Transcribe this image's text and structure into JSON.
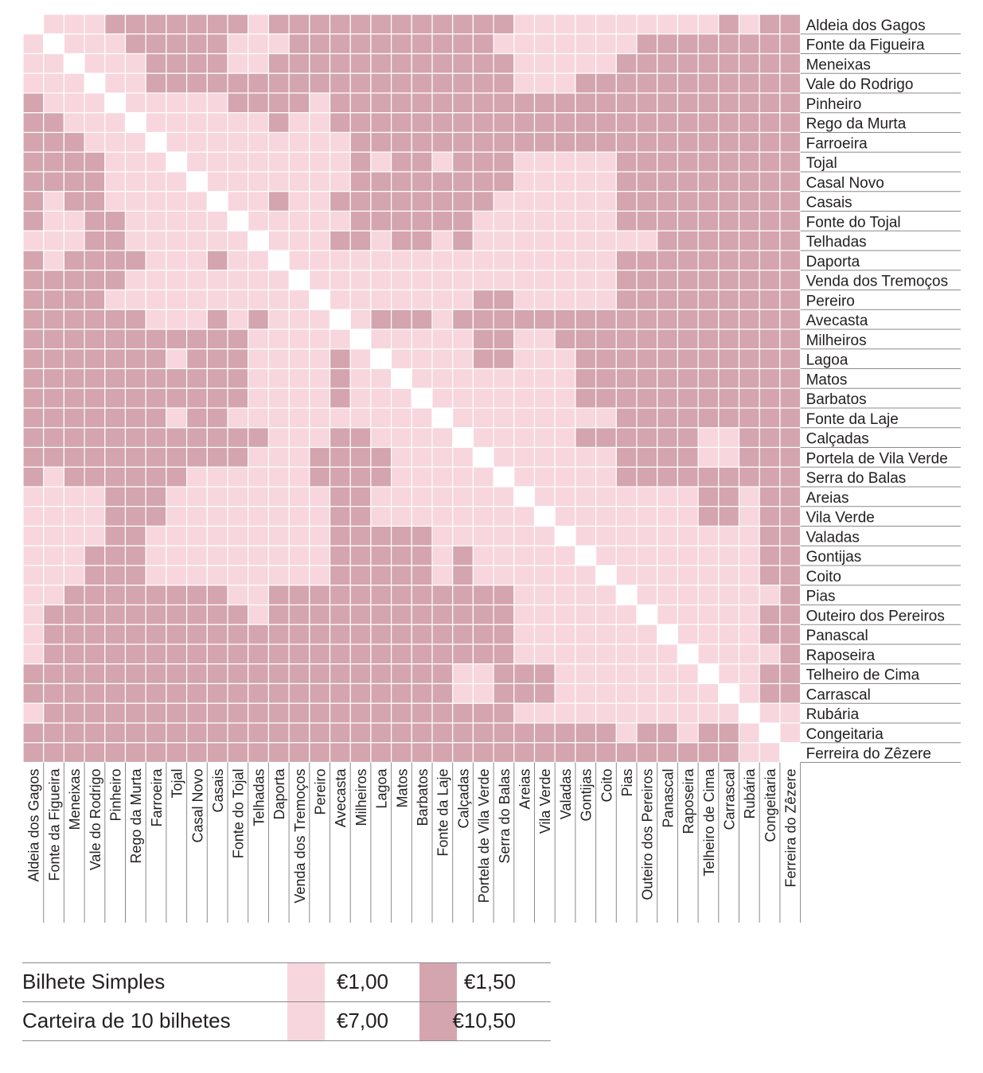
{
  "chart_data": {
    "type": "heatmap",
    "stops": [
      "Aldeia dos Gagos",
      "Fonte da Figueira",
      "Meneixas",
      "Vale do Rodrigo",
      "Pinheiro",
      "Rego da Murta",
      "Farroeira",
      "Tojal",
      "Casal Novo",
      "Casais",
      "Fonte do Tojal",
      "Telhadas",
      "Daporta",
      "Venda dos Tremoços",
      "Pereiro",
      "Avecasta",
      "Milheiros",
      "Lagoa",
      "Matos",
      "Barbatos",
      "Fonte da Laje",
      "Calçadas",
      "Portela de Vila Verde",
      "Serra do Balas",
      "Areias",
      "Vila Verde",
      "Valadas",
      "Gontijas",
      "Coito",
      "Pias",
      "Outeiro dos Pereiros",
      "Panascal",
      "Raposeira",
      "Telheiro de Cima",
      "Carrascal",
      "Rubária",
      "Congeitaria",
      "Ferreira do Zêzere"
    ],
    "value_legend": {
      "1": "€1,00",
      "2": "€1,50"
    },
    "matrix": [
      [
        0,
        1,
        1,
        1,
        2,
        2,
        2,
        2,
        2,
        2,
        2,
        1,
        2,
        2,
        2,
        2,
        2,
        2,
        2,
        2,
        2,
        2,
        2,
        2,
        1,
        1,
        1,
        1,
        1,
        1,
        1,
        1,
        1,
        1,
        2,
        1,
        2,
        2
      ],
      [
        1,
        0,
        1,
        1,
        1,
        2,
        2,
        2,
        2,
        2,
        1,
        1,
        1,
        2,
        2,
        2,
        2,
        2,
        2,
        2,
        2,
        2,
        2,
        1,
        1,
        1,
        1,
        1,
        1,
        1,
        2,
        2,
        2,
        2,
        2,
        2,
        2,
        2
      ],
      [
        1,
        1,
        0,
        1,
        1,
        1,
        2,
        2,
        2,
        2,
        1,
        1,
        2,
        2,
        2,
        2,
        2,
        2,
        2,
        2,
        2,
        2,
        2,
        2,
        1,
        1,
        1,
        1,
        1,
        2,
        2,
        2,
        2,
        2,
        2,
        2,
        2,
        2
      ],
      [
        1,
        1,
        1,
        0,
        1,
        1,
        2,
        2,
        2,
        2,
        2,
        2,
        2,
        2,
        2,
        2,
        2,
        2,
        2,
        2,
        2,
        2,
        2,
        2,
        1,
        1,
        1,
        2,
        2,
        2,
        2,
        2,
        2,
        2,
        2,
        2,
        2,
        2
      ],
      [
        2,
        1,
        1,
        1,
        0,
        1,
        1,
        1,
        1,
        1,
        2,
        2,
        2,
        2,
        1,
        2,
        2,
        2,
        2,
        2,
        2,
        2,
        2,
        2,
        2,
        2,
        2,
        2,
        2,
        2,
        2,
        2,
        2,
        2,
        2,
        2,
        2,
        2
      ],
      [
        2,
        2,
        1,
        1,
        1,
        0,
        1,
        1,
        1,
        1,
        1,
        1,
        2,
        1,
        1,
        2,
        2,
        2,
        2,
        2,
        2,
        2,
        2,
        2,
        2,
        2,
        2,
        2,
        2,
        2,
        2,
        2,
        2,
        2,
        2,
        2,
        2,
        2
      ],
      [
        2,
        2,
        2,
        1,
        1,
        1,
        0,
        1,
        1,
        1,
        1,
        1,
        1,
        1,
        1,
        1,
        2,
        2,
        2,
        2,
        2,
        2,
        2,
        2,
        2,
        2,
        2,
        2,
        2,
        2,
        2,
        2,
        2,
        2,
        2,
        2,
        2,
        2
      ],
      [
        2,
        2,
        2,
        2,
        1,
        1,
        1,
        0,
        1,
        1,
        1,
        1,
        1,
        1,
        1,
        1,
        2,
        1,
        2,
        2,
        1,
        2,
        2,
        2,
        1,
        1,
        1,
        1,
        1,
        2,
        2,
        2,
        2,
        2,
        2,
        2,
        2,
        2
      ],
      [
        2,
        2,
        2,
        2,
        1,
        1,
        1,
        1,
        0,
        1,
        1,
        1,
        1,
        1,
        1,
        1,
        2,
        2,
        2,
        2,
        2,
        2,
        2,
        2,
        1,
        1,
        1,
        1,
        1,
        2,
        2,
        2,
        2,
        2,
        2,
        2,
        2,
        2
      ],
      [
        2,
        1,
        2,
        2,
        1,
        1,
        1,
        1,
        1,
        0,
        1,
        1,
        2,
        1,
        1,
        2,
        2,
        2,
        2,
        2,
        2,
        2,
        2,
        1,
        1,
        1,
        1,
        1,
        1,
        2,
        2,
        2,
        2,
        2,
        2,
        2,
        2,
        2
      ],
      [
        2,
        1,
        1,
        2,
        2,
        1,
        1,
        1,
        1,
        1,
        0,
        1,
        1,
        1,
        1,
        1,
        2,
        2,
        2,
        2,
        2,
        2,
        1,
        1,
        1,
        1,
        1,
        1,
        1,
        2,
        2,
        2,
        2,
        2,
        2,
        2,
        2,
        2
      ],
      [
        1,
        1,
        1,
        2,
        2,
        1,
        1,
        1,
        1,
        1,
        1,
        0,
        1,
        1,
        1,
        2,
        2,
        1,
        2,
        2,
        1,
        2,
        1,
        1,
        1,
        1,
        1,
        1,
        1,
        1,
        1,
        2,
        2,
        2,
        2,
        2,
        2,
        2
      ],
      [
        2,
        1,
        2,
        2,
        2,
        2,
        1,
        1,
        1,
        2,
        1,
        1,
        0,
        1,
        1,
        1,
        1,
        1,
        1,
        1,
        1,
        1,
        1,
        1,
        1,
        1,
        1,
        1,
        1,
        2,
        2,
        2,
        2,
        2,
        2,
        2,
        2,
        2
      ],
      [
        2,
        2,
        2,
        2,
        2,
        1,
        1,
        1,
        1,
        1,
        1,
        1,
        1,
        0,
        1,
        1,
        1,
        1,
        1,
        1,
        1,
        1,
        1,
        1,
        1,
        1,
        1,
        1,
        1,
        2,
        2,
        2,
        2,
        2,
        2,
        2,
        2,
        2
      ],
      [
        2,
        2,
        2,
        2,
        1,
        1,
        1,
        1,
        1,
        1,
        1,
        1,
        1,
        1,
        0,
        1,
        1,
        1,
        1,
        1,
        1,
        1,
        2,
        2,
        1,
        1,
        1,
        1,
        1,
        2,
        2,
        2,
        2,
        2,
        2,
        2,
        2,
        2
      ],
      [
        2,
        2,
        2,
        2,
        2,
        2,
        1,
        1,
        1,
        2,
        1,
        2,
        1,
        1,
        1,
        0,
        1,
        2,
        2,
        2,
        1,
        2,
        2,
        2,
        2,
        2,
        2,
        2,
        2,
        2,
        2,
        2,
        2,
        2,
        2,
        2,
        2,
        2
      ],
      [
        2,
        2,
        2,
        2,
        2,
        2,
        2,
        2,
        2,
        2,
        2,
        1,
        1,
        1,
        1,
        1,
        0,
        1,
        1,
        1,
        1,
        1,
        2,
        2,
        1,
        1,
        2,
        2,
        2,
        2,
        2,
        2,
        2,
        2,
        2,
        2,
        2,
        2
      ],
      [
        2,
        2,
        2,
        2,
        2,
        2,
        2,
        1,
        2,
        2,
        2,
        1,
        1,
        1,
        1,
        2,
        1,
        0,
        1,
        1,
        1,
        1,
        2,
        2,
        1,
        1,
        1,
        2,
        2,
        2,
        2,
        2,
        2,
        2,
        2,
        2,
        2,
        2
      ],
      [
        2,
        2,
        2,
        2,
        2,
        2,
        2,
        2,
        2,
        2,
        2,
        1,
        1,
        1,
        1,
        2,
        1,
        1,
        0,
        1,
        1,
        1,
        1,
        1,
        1,
        1,
        1,
        2,
        2,
        2,
        2,
        2,
        2,
        2,
        2,
        2,
        2,
        2
      ],
      [
        2,
        2,
        2,
        2,
        2,
        2,
        2,
        2,
        2,
        2,
        2,
        1,
        1,
        1,
        1,
        2,
        1,
        1,
        1,
        0,
        1,
        1,
        1,
        1,
        1,
        1,
        1,
        2,
        2,
        2,
        2,
        2,
        2,
        2,
        2,
        2,
        2,
        2
      ],
      [
        2,
        2,
        2,
        2,
        2,
        2,
        2,
        1,
        2,
        2,
        1,
        1,
        1,
        1,
        1,
        1,
        1,
        1,
        1,
        1,
        0,
        1,
        1,
        1,
        1,
        1,
        1,
        1,
        1,
        2,
        2,
        2,
        2,
        2,
        2,
        2,
        2,
        2
      ],
      [
        2,
        2,
        2,
        2,
        2,
        2,
        2,
        2,
        2,
        2,
        2,
        2,
        1,
        1,
        1,
        2,
        2,
        1,
        1,
        1,
        1,
        0,
        1,
        1,
        1,
        1,
        1,
        2,
        2,
        2,
        2,
        2,
        2,
        1,
        1,
        2,
        2,
        2
      ],
      [
        2,
        2,
        2,
        2,
        2,
        2,
        2,
        2,
        2,
        2,
        2,
        1,
        1,
        1,
        2,
        2,
        2,
        2,
        1,
        1,
        1,
        1,
        0,
        1,
        1,
        1,
        1,
        1,
        1,
        2,
        2,
        2,
        2,
        1,
        1,
        2,
        2,
        2
      ],
      [
        2,
        1,
        2,
        2,
        2,
        2,
        2,
        2,
        1,
        1,
        1,
        1,
        1,
        1,
        2,
        2,
        2,
        2,
        1,
        1,
        1,
        1,
        1,
        0,
        1,
        1,
        1,
        1,
        1,
        2,
        2,
        2,
        2,
        2,
        2,
        2,
        2,
        2
      ],
      [
        1,
        1,
        1,
        1,
        2,
        2,
        2,
        1,
        1,
        1,
        1,
        1,
        1,
        1,
        1,
        2,
        2,
        1,
        1,
        1,
        1,
        1,
        1,
        1,
        0,
        1,
        1,
        1,
        1,
        1,
        1,
        1,
        1,
        2,
        2,
        1,
        2,
        2
      ],
      [
        1,
        1,
        1,
        1,
        2,
        2,
        2,
        1,
        1,
        1,
        1,
        1,
        1,
        1,
        1,
        2,
        2,
        1,
        1,
        1,
        1,
        1,
        1,
        1,
        1,
        0,
        1,
        1,
        1,
        1,
        1,
        1,
        1,
        2,
        2,
        1,
        2,
        2
      ],
      [
        1,
        1,
        1,
        1,
        2,
        2,
        1,
        1,
        1,
        1,
        1,
        1,
        1,
        1,
        1,
        2,
        2,
        2,
        2,
        2,
        1,
        1,
        1,
        1,
        1,
        1,
        0,
        1,
        1,
        1,
        1,
        1,
        1,
        1,
        1,
        1,
        2,
        2
      ],
      [
        1,
        1,
        1,
        2,
        2,
        2,
        1,
        1,
        1,
        1,
        1,
        1,
        1,
        1,
        1,
        2,
        2,
        2,
        2,
        2,
        1,
        2,
        1,
        1,
        1,
        1,
        1,
        0,
        1,
        1,
        1,
        1,
        1,
        1,
        1,
        1,
        2,
        2
      ],
      [
        1,
        1,
        1,
        2,
        2,
        2,
        1,
        1,
        1,
        1,
        1,
        1,
        1,
        1,
        1,
        2,
        2,
        2,
        2,
        2,
        1,
        2,
        1,
        1,
        1,
        1,
        1,
        1,
        0,
        1,
        1,
        1,
        1,
        1,
        1,
        1,
        2,
        2
      ],
      [
        1,
        1,
        2,
        2,
        2,
        2,
        2,
        2,
        2,
        2,
        1,
        1,
        2,
        2,
        2,
        2,
        2,
        2,
        2,
        2,
        2,
        2,
        2,
        2,
        1,
        1,
        1,
        1,
        1,
        0,
        1,
        1,
        1,
        1,
        1,
        1,
        1,
        2
      ],
      [
        1,
        2,
        2,
        2,
        2,
        2,
        2,
        2,
        2,
        2,
        2,
        1,
        2,
        2,
        2,
        2,
        2,
        2,
        2,
        2,
        2,
        2,
        2,
        2,
        1,
        1,
        1,
        1,
        1,
        1,
        0,
        1,
        1,
        1,
        1,
        1,
        2,
        2
      ],
      [
        1,
        2,
        2,
        2,
        2,
        2,
        2,
        2,
        2,
        2,
        2,
        2,
        2,
        2,
        2,
        2,
        2,
        2,
        2,
        2,
        2,
        2,
        2,
        2,
        1,
        1,
        1,
        1,
        1,
        1,
        1,
        0,
        1,
        1,
        1,
        1,
        2,
        2
      ],
      [
        1,
        2,
        2,
        2,
        2,
        2,
        2,
        2,
        2,
        2,
        2,
        2,
        2,
        2,
        2,
        2,
        2,
        2,
        2,
        2,
        2,
        2,
        2,
        2,
        1,
        1,
        1,
        1,
        1,
        1,
        1,
        1,
        0,
        1,
        1,
        1,
        1,
        2
      ],
      [
        2,
        2,
        2,
        2,
        2,
        2,
        2,
        2,
        2,
        2,
        2,
        2,
        2,
        2,
        2,
        2,
        2,
        2,
        2,
        2,
        2,
        1,
        1,
        2,
        2,
        2,
        1,
        1,
        1,
        1,
        1,
        1,
        1,
        0,
        1,
        1,
        2,
        2
      ],
      [
        2,
        2,
        2,
        2,
        2,
        2,
        2,
        2,
        2,
        2,
        2,
        2,
        2,
        2,
        2,
        2,
        2,
        2,
        2,
        2,
        2,
        1,
        1,
        2,
        2,
        2,
        1,
        1,
        1,
        1,
        1,
        1,
        1,
        1,
        0,
        1,
        2,
        2
      ],
      [
        1,
        2,
        2,
        2,
        2,
        2,
        2,
        2,
        2,
        2,
        2,
        2,
        2,
        2,
        2,
        2,
        2,
        2,
        2,
        2,
        2,
        2,
        2,
        2,
        1,
        1,
        1,
        1,
        1,
        1,
        1,
        1,
        1,
        1,
        1,
        0,
        1,
        1
      ],
      [
        2,
        2,
        2,
        2,
        2,
        2,
        2,
        2,
        2,
        2,
        2,
        2,
        2,
        2,
        2,
        2,
        2,
        2,
        2,
        2,
        2,
        2,
        2,
        2,
        2,
        2,
        2,
        2,
        2,
        1,
        2,
        2,
        1,
        2,
        2,
        1,
        0,
        1
      ],
      [
        2,
        2,
        2,
        2,
        2,
        2,
        2,
        2,
        2,
        2,
        2,
        2,
        2,
        2,
        2,
        2,
        2,
        2,
        2,
        2,
        2,
        2,
        2,
        2,
        2,
        2,
        2,
        2,
        2,
        2,
        2,
        2,
        2,
        2,
        2,
        1,
        1,
        0
      ]
    ]
  },
  "colors": {
    "light": "#f8d6de",
    "dark": "#d4a5ae",
    "diagonal": "#ffffff",
    "grid": "#ffffff",
    "rule": "#8a8a8a"
  },
  "legend": {
    "rows": [
      {
        "label": "Bilhete Simples",
        "price_low": "€1,00",
        "price_high": "€1,50"
      },
      {
        "label": "Carteira de 10 bilhetes",
        "price_low": "€7,00",
        "price_high": "€10,50"
      }
    ]
  }
}
